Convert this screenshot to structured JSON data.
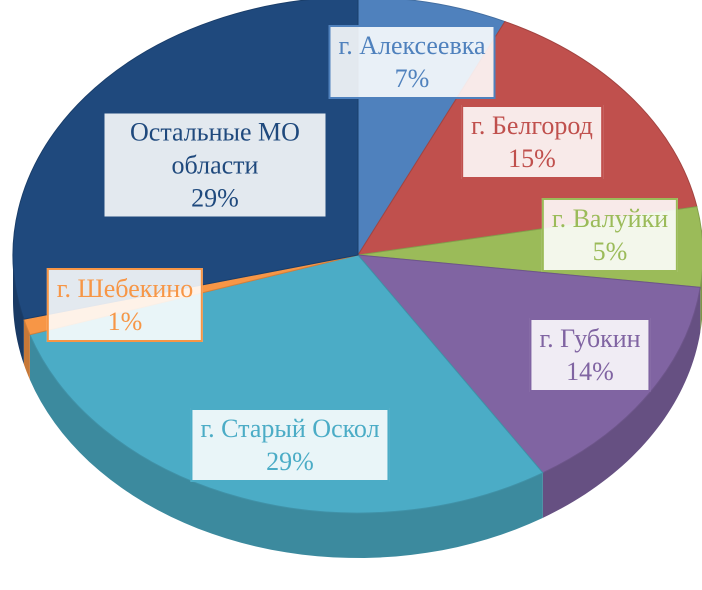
{
  "chart_data": {
    "type": "pie",
    "categories": [
      "г. Алексеевка",
      "г. Белгород",
      "г. Валуйки",
      "г. Губкин",
      "г. Старый Оскол",
      "г. Шебекино",
      "Остальные МО области"
    ],
    "values": [
      7,
      15,
      5,
      14,
      29,
      1,
      29
    ],
    "value_labels": [
      "7%",
      "15%",
      "5%",
      "14%",
      "29%",
      "1%",
      "29%"
    ],
    "colors": [
      "#4f81bd",
      "#c0504d",
      "#9bbb59",
      "#8064a2",
      "#4bacc6",
      "#f79646",
      "#1f497d"
    ]
  }
}
